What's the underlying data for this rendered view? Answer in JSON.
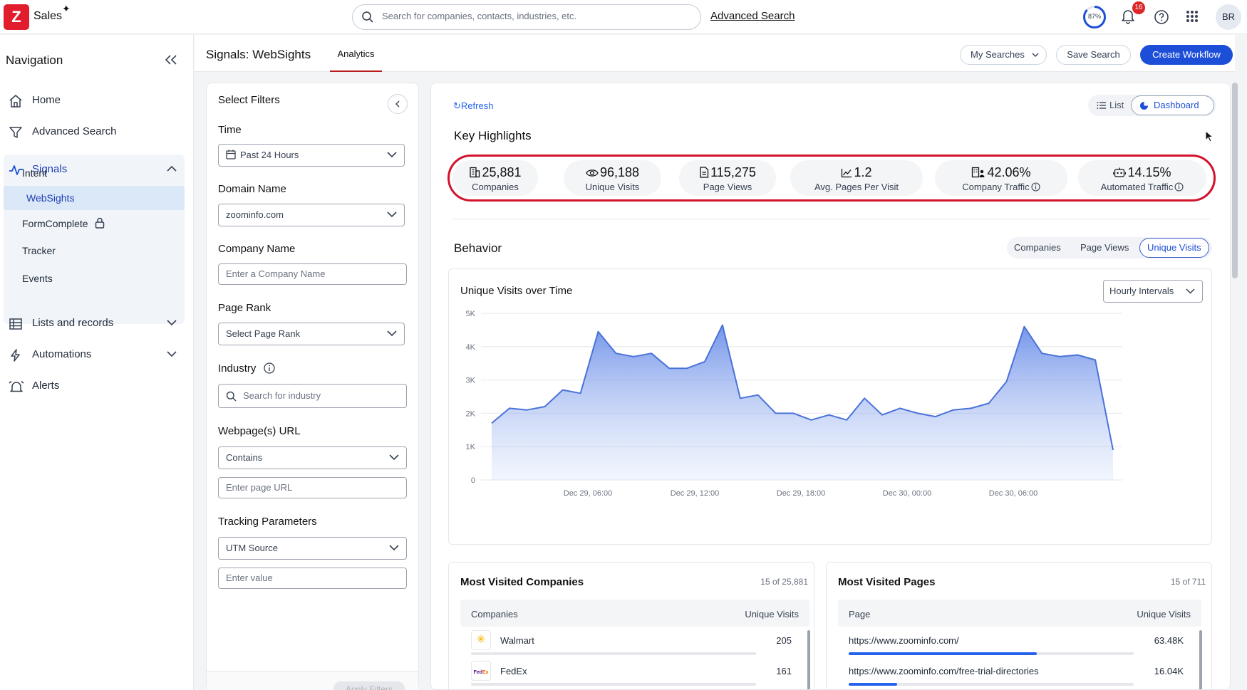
{
  "app": {
    "logo_letter": "Z",
    "name": "Sales",
    "sparkle": "✦"
  },
  "topbar": {
    "search_placeholder": "Search for companies, contacts, industries, etc.",
    "advanced_search": "Advanced Search",
    "progress_label": "87%",
    "progress_value": 0.87,
    "notifications_count": "16",
    "avatar_initials": "BR"
  },
  "nav": {
    "title": "Navigation",
    "items": [
      {
        "label": "Home",
        "icon": "home-icon"
      },
      {
        "label": "Advanced Search",
        "icon": "filter-icon"
      },
      {
        "label": "Signals",
        "icon": "pulse-icon"
      },
      {
        "label": "Lists and records",
        "icon": "table-icon"
      },
      {
        "label": "Automations",
        "icon": "bolt-icon"
      },
      {
        "label": "Alerts",
        "icon": "alarm-icon"
      }
    ],
    "signals_sub": [
      "Intent",
      "WebSights",
      "FormComplete",
      "Tracker",
      "Events"
    ]
  },
  "page": {
    "title": "Signals: WebSights",
    "tab": "Analytics",
    "my_searches": "My Searches",
    "save_search": "Save Search",
    "create_workflow": "Create Workflow"
  },
  "filters": {
    "heading": "Select Filters",
    "time_label": "Time",
    "time_value": "Past 24 Hours",
    "domain_label": "Domain Name",
    "domain_value": "zoominfo.com",
    "company_label": "Company Name",
    "company_placeholder": "Enter a Company Name",
    "rank_label": "Page Rank",
    "rank_placeholder": "Select Page Rank",
    "industry_label": "Industry",
    "industry_placeholder": "Search for industry",
    "url_label": "Webpage(s) URL",
    "url_mode": "Contains",
    "url_placeholder": "Enter page URL",
    "tracking_label": "Tracking Parameters",
    "tracking_param": "UTM Source",
    "tracking_placeholder": "Enter value",
    "apply": "Apply Filters"
  },
  "dashboard": {
    "refresh": "Refresh",
    "view_list": "List",
    "view_dashboard": "Dashboard",
    "highlights_title": "Key Highlights",
    "kpis": [
      {
        "value": "25,881",
        "caption": "Companies",
        "icon": "building-icon"
      },
      {
        "value": "96,188",
        "caption": "Unique Visits",
        "icon": "eye-icon"
      },
      {
        "value": "115,275",
        "caption": "Page Views",
        "icon": "document-icon"
      },
      {
        "value": "1.2",
        "caption": "Avg. Pages Per Visit",
        "icon": "line-chart-icon"
      },
      {
        "value": "42.06%",
        "caption": "Company Traffic",
        "icon": "office-people-icon"
      },
      {
        "value": "14.15%",
        "caption": "Automated Traffic",
        "icon": "robot-icon"
      }
    ],
    "behavior_title": "Behavior",
    "metric_tabs": [
      "Companies",
      "Page Views",
      "Unique Visits"
    ],
    "active_metric": "Unique Visits",
    "chart_title": "Unique Visits over Time",
    "interval": "Hourly Intervals"
  },
  "chart_data": {
    "type": "area",
    "title": "Unique Visits over Time",
    "xlabel": "",
    "ylabel": "",
    "ylim": [
      0,
      5000
    ],
    "yticks": [
      "0",
      "1K",
      "2K",
      "3K",
      "4K",
      "5K"
    ],
    "xticks": [
      "Dec 29, 06:00",
      "Dec 29, 12:00",
      "Dec 29, 18:00",
      "Dec 30, 00:00",
      "Dec 30, 06:00"
    ],
    "color": "#4a72d9",
    "grid": true,
    "series": [
      {
        "values": [
          1700,
          2150,
          2100,
          2200,
          2700,
          2600,
          4450,
          3800,
          3700,
          3800,
          3350,
          3350,
          3550,
          4650,
          2450,
          2550,
          2000,
          2000,
          1800,
          1950,
          1800,
          2450,
          1950,
          2150,
          2000,
          1900,
          2100,
          2150,
          2300,
          2950,
          4600,
          3800,
          3700,
          3750,
          3600,
          900
        ]
      }
    ]
  },
  "companies_table": {
    "title": "Most Visited Companies",
    "count": "15 of 25,881",
    "col1": "Companies",
    "col2": "Unique Visits",
    "rows": [
      {
        "name": "Walmart",
        "value": "205",
        "share": 1.0,
        "logo": "walmart-logo-icon"
      },
      {
        "name": "FedEx",
        "value": "161",
        "share": 0.79,
        "logo": "fedex-logo-icon"
      }
    ]
  },
  "pages_table": {
    "title": "Most Visited Pages",
    "count": "15 of 711",
    "col1": "Page",
    "col2": "Unique Visits",
    "rows": [
      {
        "name": "https://www.zoominfo.com/",
        "value": "63.48K",
        "share": 0.66
      },
      {
        "name": "https://www.zoominfo.com/free-trial-directories",
        "value": "16.04K",
        "share": 0.17
      }
    ]
  }
}
